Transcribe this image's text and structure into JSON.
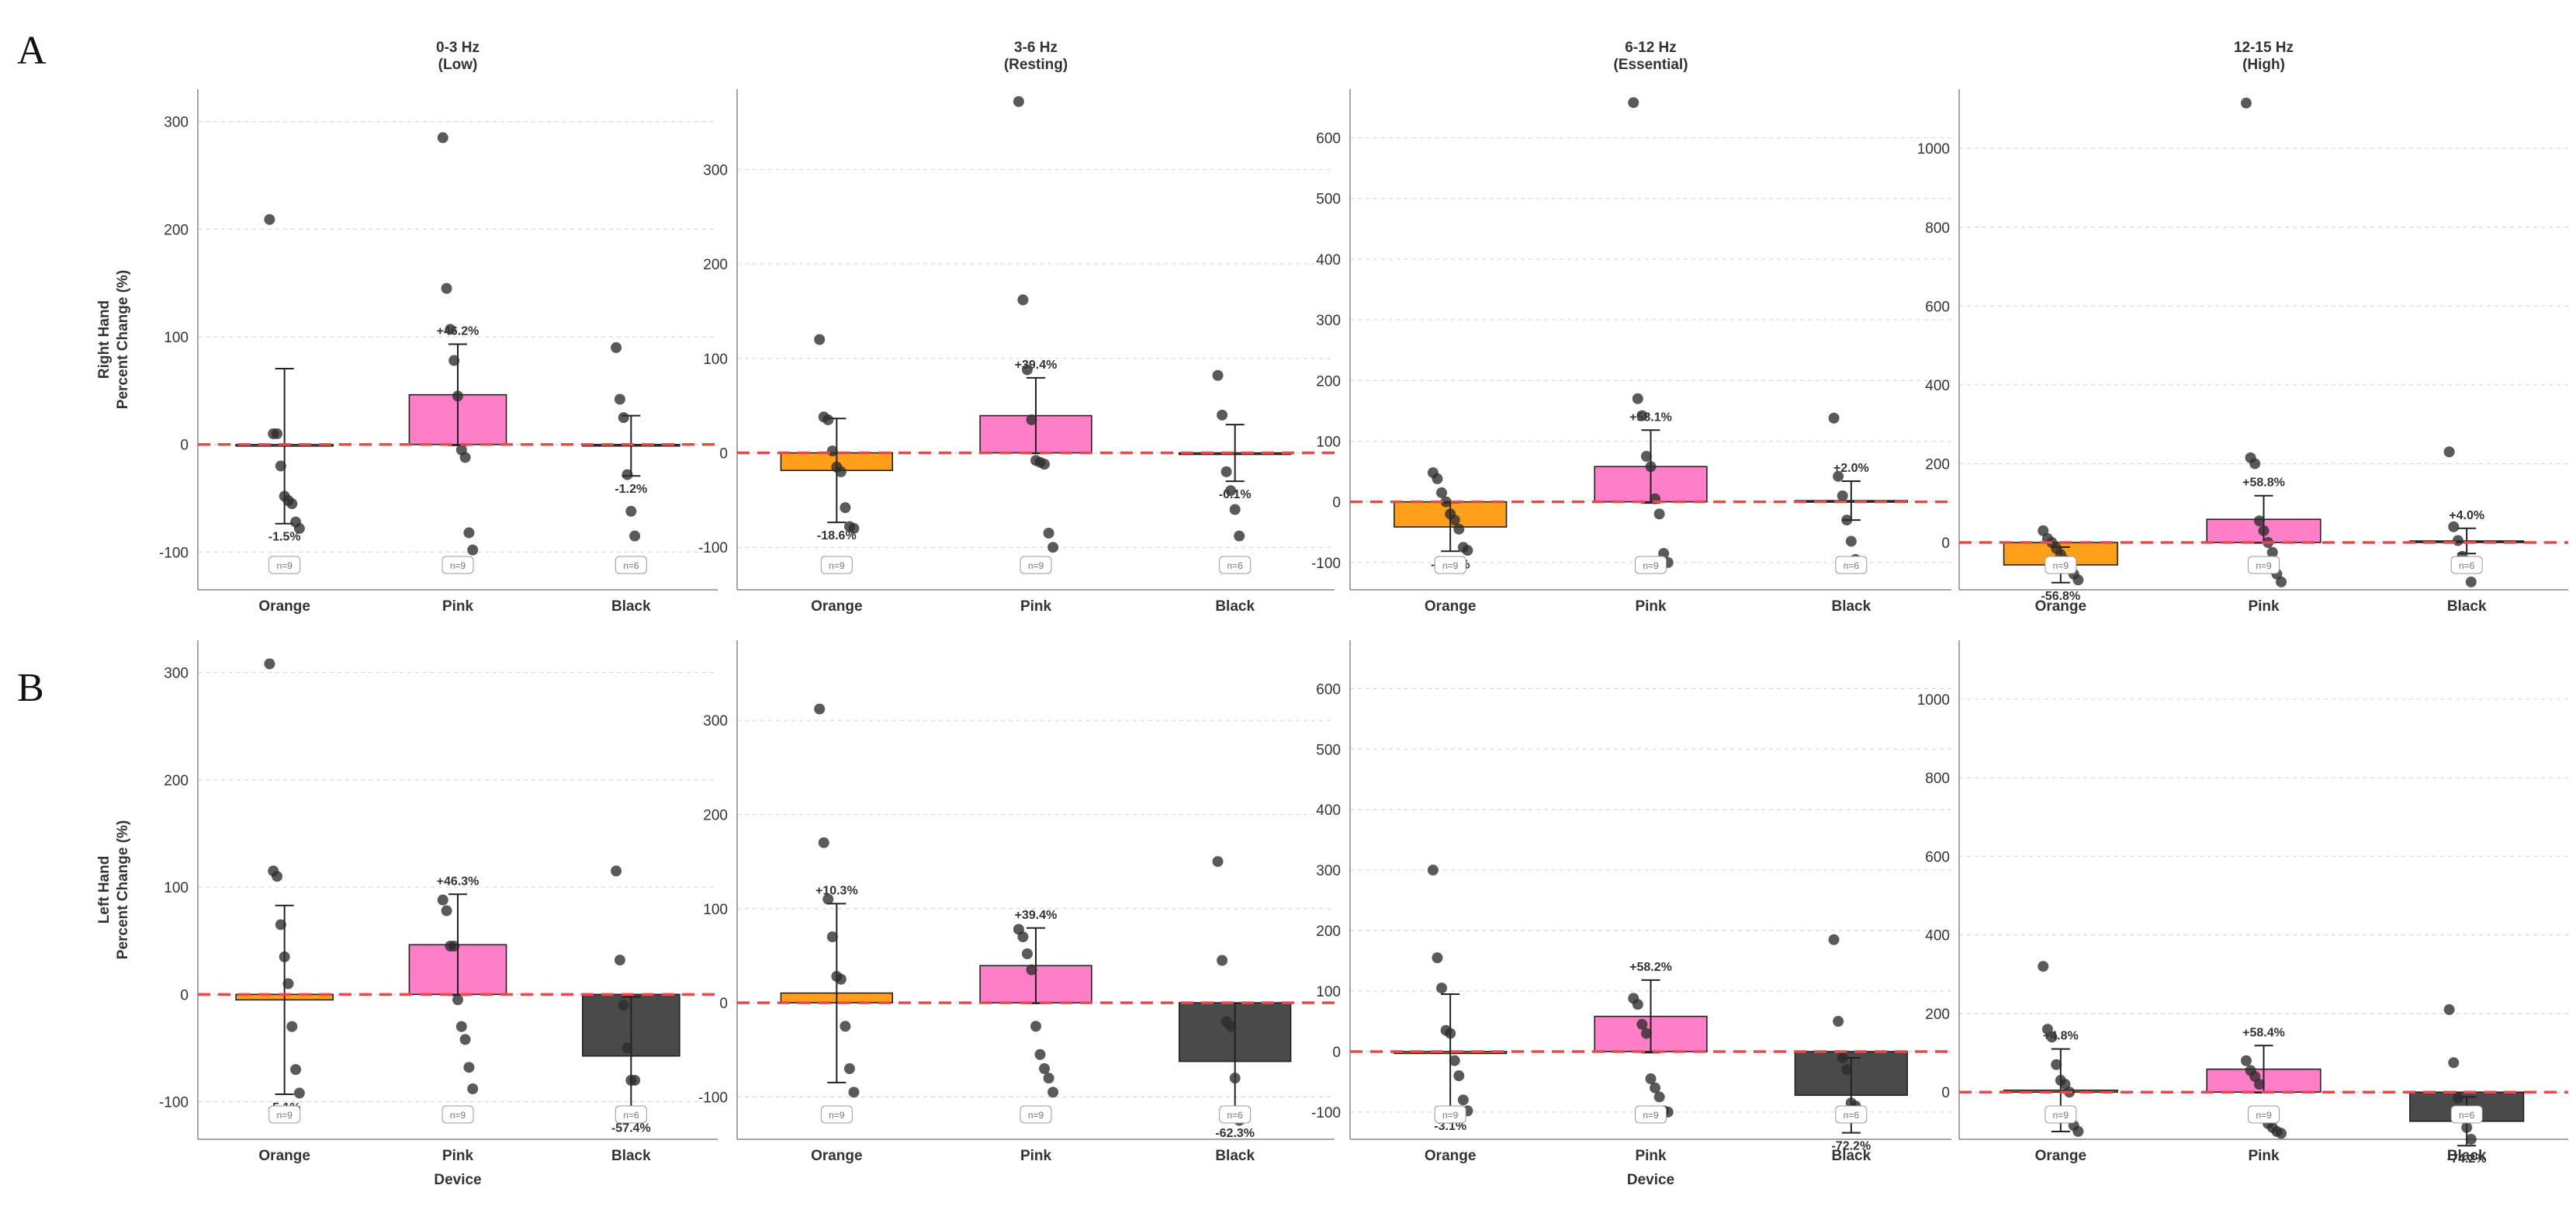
{
  "figure": {
    "panel_labels": [
      "A",
      "B"
    ],
    "colors": {
      "Orange": "#ff9f1a",
      "Pink": "#ff7ec8",
      "Black": "#4a4a4a",
      "zero_line": "#e84a4a",
      "point": "#2b2b2b"
    }
  },
  "chart_data": [
    {
      "type": "bar",
      "panel": "A",
      "title": "0-3 Hz\n(Low)",
      "ylabel": "Right Hand\nPercent Change (%)",
      "xlabel": "",
      "ylim": [
        -135,
        330
      ],
      "yticks": [
        -100,
        0,
        100,
        200,
        300
      ],
      "categories": [
        "Orange",
        "Pink",
        "Black"
      ],
      "values": [
        -1.5,
        46.2,
        -1.2
      ],
      "errors": [
        72,
        47,
        28
      ],
      "labels": [
        "-1.5%",
        "+46.2%",
        "-1.2%"
      ],
      "n": [
        "n=9",
        "n=9",
        "n=6"
      ],
      "points": [
        [
          209,
          10,
          10,
          -20,
          -48,
          -52,
          -55,
          -72,
          -78
        ],
        [
          285,
          145,
          107,
          78,
          45,
          -5,
          -12,
          -82,
          -98
        ],
        [
          90,
          42,
          25,
          -28,
          -62,
          -85
        ]
      ]
    },
    {
      "type": "bar",
      "panel": "A",
      "title": "3-6 Hz\n(Resting)",
      "ylabel": "",
      "xlabel": "",
      "ylim": [
        -145,
        385
      ],
      "yticks": [
        -100,
        0,
        100,
        200,
        300
      ],
      "categories": [
        "Orange",
        "Pink",
        "Black"
      ],
      "values": [
        -18.6,
        39.4,
        -0.1
      ],
      "errors": [
        55,
        40,
        30
      ],
      "labels": [
        "-18.6%",
        "+39.4%",
        "-0.1%"
      ],
      "n": [
        "n=9",
        "n=9",
        "n=6"
      ],
      "points": [
        [
          120,
          38,
          35,
          2,
          -15,
          -20,
          -58,
          -78,
          -80
        ],
        [
          372,
          162,
          88,
          35,
          -8,
          -10,
          -12,
          -85,
          -100
        ],
        [
          82,
          40,
          -20,
          -40,
          -60,
          -88
        ]
      ]
    },
    {
      "type": "bar",
      "panel": "A",
      "title": "6-12 Hz\n(Essential)",
      "ylabel": "",
      "xlabel": "",
      "ylim": [
        -145,
        680
      ],
      "yticks": [
        -100,
        0,
        100,
        200,
        300,
        400,
        500,
        600
      ],
      "categories": [
        "Orange",
        "Pink",
        "Black"
      ],
      "values": [
        -41.4,
        58.1,
        2.0
      ],
      "errors": [
        40,
        60,
        32
      ],
      "labels": [
        "-41.4%",
        "+58.1%",
        "+2.0%"
      ],
      "n": [
        "n=9",
        "n=9",
        "n=6"
      ],
      "points": [
        [
          48,
          38,
          15,
          0,
          -20,
          -30,
          -45,
          -75,
          -80
        ],
        [
          658,
          170,
          142,
          75,
          58,
          5,
          -20,
          -85,
          -100
        ],
        [
          138,
          42,
          10,
          -30,
          -65,
          -95
        ]
      ]
    },
    {
      "type": "bar",
      "panel": "A",
      "title": "12-15 Hz\n(High)",
      "ylabel": "",
      "xlabel": "",
      "ylim": [
        -120,
        1150
      ],
      "yticks": [
        0,
        200,
        400,
        600,
        800,
        1000
      ],
      "categories": [
        "Orange",
        "Pink",
        "Black"
      ],
      "values": [
        -56.8,
        58.8,
        4.0
      ],
      "errors": [
        45,
        60,
        32
      ],
      "labels": [
        "-56.8%",
        "+58.8%",
        "+4.0%"
      ],
      "n": [
        "n=9",
        "n=9",
        "n=6"
      ],
      "points": [
        [
          30,
          10,
          0,
          -15,
          -30,
          -45,
          -60,
          -80,
          -95
        ],
        [
          1115,
          215,
          200,
          55,
          30,
          0,
          -25,
          -80,
          -100
        ],
        [
          230,
          40,
          5,
          -35,
          -60,
          -100
        ]
      ]
    },
    {
      "type": "bar",
      "panel": "B",
      "title": "",
      "ylabel": "Left Hand\nPercent Change (%)",
      "xlabel": "Device",
      "ylim": [
        -135,
        330
      ],
      "yticks": [
        -100,
        0,
        100,
        200,
        300
      ],
      "categories": [
        "Orange",
        "Pink",
        "Black"
      ],
      "values": [
        -5.1,
        46.3,
        -57.4
      ],
      "errors": [
        88,
        47,
        55
      ],
      "labels": [
        "-5.1%",
        "+46.3%",
        "-57.4%"
      ],
      "n": [
        "n=9",
        "n=9",
        "n=6"
      ],
      "points": [
        [
          308,
          115,
          110,
          65,
          35,
          10,
          -30,
          -70,
          -92
        ],
        [
          88,
          78,
          45,
          45,
          -5,
          -30,
          -42,
          -68,
          -88
        ],
        [
          115,
          32,
          -10,
          -50,
          -80,
          -80
        ]
      ]
    },
    {
      "type": "bar",
      "panel": "B",
      "title": "",
      "ylabel": "",
      "xlabel": "",
      "ylim": [
        -145,
        385
      ],
      "yticks": [
        -100,
        0,
        100,
        200,
        300
      ],
      "categories": [
        "Orange",
        "Pink",
        "Black"
      ],
      "values": [
        10.3,
        39.4,
        -62.3
      ],
      "errors": [
        95,
        40,
        62
      ],
      "labels": [
        "+10.3%",
        "+39.4%",
        "-62.3%"
      ],
      "n": [
        "n=9",
        "n=9",
        "n=6"
      ],
      "points": [
        [
          312,
          170,
          110,
          70,
          28,
          25,
          -25,
          -70,
          -95
        ],
        [
          78,
          70,
          52,
          35,
          -25,
          -55,
          -70,
          -80,
          -95
        ],
        [
          150,
          45,
          -20,
          -25,
          -80,
          -125
        ]
      ]
    },
    {
      "type": "bar",
      "panel": "B",
      "title": "",
      "ylabel": "",
      "xlabel": "Device",
      "ylim": [
        -145,
        680
      ],
      "yticks": [
        -100,
        0,
        100,
        200,
        300,
        400,
        500,
        600
      ],
      "categories": [
        "Orange",
        "Pink",
        "Black"
      ],
      "values": [
        -3.1,
        58.2,
        -72.2
      ],
      "errors": [
        98,
        60,
        62
      ],
      "labels": [
        "-3.1%",
        "+58.2%",
        "-72.2%"
      ],
      "n": [
        "n=9",
        "n=9",
        "n=6"
      ],
      "points": [
        [
          300,
          155,
          105,
          35,
          30,
          -15,
          -40,
          -80,
          -98
        ],
        [
          88,
          78,
          45,
          30,
          -45,
          -60,
          -75,
          -98,
          -100
        ],
        [
          185,
          50,
          -10,
          -30,
          -85,
          -90
        ]
      ]
    },
    {
      "type": "bar",
      "panel": "B",
      "title": "",
      "ylabel": "",
      "xlabel": "",
      "ylim": [
        -120,
        1150
      ],
      "yticks": [
        0,
        200,
        400,
        600,
        800,
        1000
      ],
      "categories": [
        "Orange",
        "Pink",
        "Black"
      ],
      "values": [
        4.8,
        58.4,
        -74.2
      ],
      "errors": [
        105,
        60,
        62
      ],
      "labels": [
        "+4.8%",
        "+58.4%",
        "-74.2%"
      ],
      "n": [
        "n=9",
        "n=9",
        "n=6"
      ],
      "points": [
        [
          320,
          160,
          140,
          70,
          30,
          20,
          0,
          -85,
          -100
        ],
        [
          80,
          55,
          40,
          20,
          -60,
          -80,
          -90,
          -100,
          -105
        ],
        [
          210,
          75,
          -15,
          -50,
          -90,
          -120
        ]
      ]
    }
  ]
}
